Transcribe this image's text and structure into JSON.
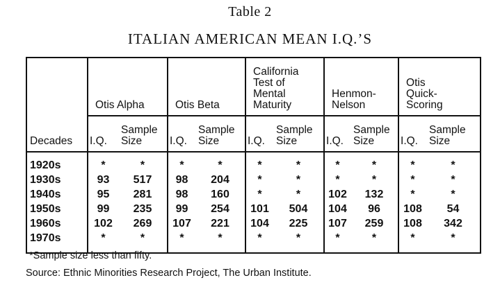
{
  "title": "Table 2",
  "subtitle": "ITALIAN AMERICAN MEAN I.Q.’S",
  "table": {
    "corner": "Decades",
    "groups": [
      {
        "name": "Otis Alpha",
        "columns": [
          "I.Q.",
          "Sample\nSize"
        ]
      },
      {
        "name": "Otis Beta",
        "columns": [
          "I.Q.",
          "Sample\nSize"
        ]
      },
      {
        "name": "California\nTest of\nMental\nMaturity",
        "columns": [
          "I.Q.",
          "Sample\nSize"
        ]
      },
      {
        "name": "Henmon-\nNelson",
        "columns": [
          "I.Q.",
          "Sample\nSize"
        ]
      },
      {
        "name": "Otis\nQuick-\nScoring",
        "columns": [
          "I.Q.",
          "Sample\nSize"
        ]
      }
    ],
    "rows": [
      [
        "1920s",
        "*",
        "*",
        "*",
        "*",
        "*",
        "*",
        "*",
        "*",
        "*",
        "*"
      ],
      [
        "1930s",
        "93",
        "517",
        "98",
        "204",
        "*",
        "*",
        "*",
        "*",
        "*",
        "*"
      ],
      [
        "1940s",
        "95",
        "281",
        "98",
        "160",
        "*",
        "*",
        "102",
        "132",
        "*",
        "*"
      ],
      [
        "1950s",
        "99",
        "235",
        "99",
        "254",
        "101",
        "504",
        "104",
        "96",
        "108",
        "54"
      ],
      [
        "1960s",
        "102",
        "269",
        "107",
        "221",
        "104",
        "225",
        "107",
        "259",
        "108",
        "342"
      ],
      [
        "1970s",
        "*",
        "*",
        "*",
        "*",
        "*",
        "*",
        "*",
        "*",
        "*",
        "*"
      ]
    ]
  },
  "notes": [
    "*Sample size less than fifty.",
    "Source: Ethnic Minorities Research Project, The Urban Institute."
  ]
}
